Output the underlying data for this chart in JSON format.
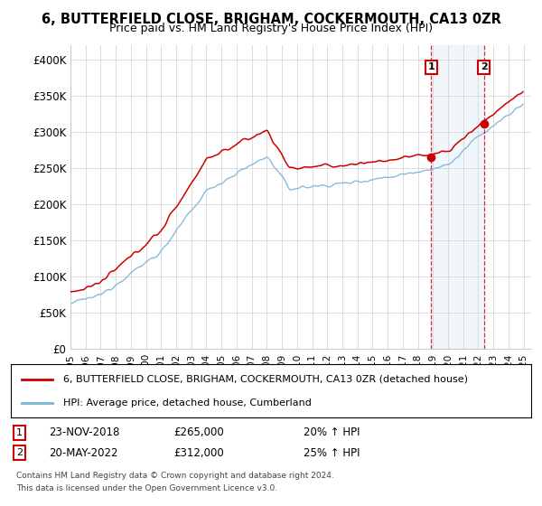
{
  "title": "6, BUTTERFIELD CLOSE, BRIGHAM, COCKERMOUTH, CA13 0ZR",
  "subtitle": "Price paid vs. HM Land Registry's House Price Index (HPI)",
  "legend_line1": "6, BUTTERFIELD CLOSE, BRIGHAM, COCKERMOUTH, CA13 0ZR (detached house)",
  "legend_line2": "HPI: Average price, detached house, Cumberland",
  "footnote1": "Contains HM Land Registry data © Crown copyright and database right 2024.",
  "footnote2": "This data is licensed under the Open Government Licence v3.0.",
  "annotation1_label": "1",
  "annotation1_date": "23-NOV-2018",
  "annotation1_price": "£265,000",
  "annotation1_hpi": "20% ↑ HPI",
  "annotation2_label": "2",
  "annotation2_date": "20-MAY-2022",
  "annotation2_price": "£312,000",
  "annotation2_hpi": "25% ↑ HPI",
  "hpi_color": "#7ab5d8",
  "price_color": "#cc0000",
  "annotation_color": "#cc0000",
  "shade_color": "#c8dff0",
  "ylim_min": 0,
  "ylim_max": 420000,
  "yticks": [
    0,
    50000,
    100000,
    150000,
    200000,
    250000,
    300000,
    350000,
    400000
  ],
  "ytick_labels": [
    "£0",
    "£50K",
    "£100K",
    "£150K",
    "£200K",
    "£250K",
    "£300K",
    "£350K",
    "£400K"
  ],
  "start_year": 1995,
  "end_year": 2025,
  "t1_year": 2018,
  "t1_month": 11,
  "t1_price": 265000,
  "t2_year": 2022,
  "t2_month": 5,
  "t2_price": 312000
}
